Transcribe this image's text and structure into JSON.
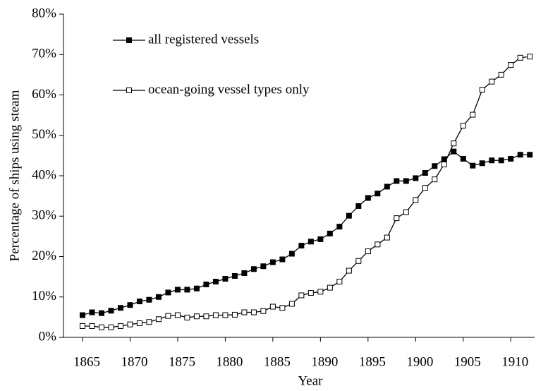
{
  "chart_data": {
    "type": "line",
    "xlabel": "Year",
    "ylabel": "Percentage of ships using steam",
    "x": [
      1865,
      1866,
      1867,
      1868,
      1869,
      1870,
      1871,
      1872,
      1873,
      1874,
      1875,
      1876,
      1877,
      1878,
      1879,
      1880,
      1881,
      1882,
      1883,
      1884,
      1885,
      1886,
      1887,
      1888,
      1889,
      1890,
      1891,
      1892,
      1893,
      1894,
      1895,
      1896,
      1897,
      1898,
      1899,
      1900,
      1901,
      1902,
      1903,
      1904,
      1905,
      1906,
      1907,
      1908,
      1909,
      1910,
      1911,
      1912
    ],
    "series": [
      {
        "name": "all registered vessels",
        "color": "#000000",
        "marker": "filled-square",
        "values": [
          5.5,
          6.2,
          6,
          6.6,
          7.3,
          8,
          8.9,
          9.3,
          10,
          11.1,
          11.8,
          11.8,
          12.1,
          13.1,
          13.8,
          14.5,
          15.2,
          15.9,
          16.9,
          17.6,
          18.6,
          19.3,
          20.7,
          22.7,
          23.7,
          24.3,
          25.7,
          27.4,
          30.1,
          32.5,
          34.5,
          35.6,
          37.3,
          38.7,
          38.7,
          39.4,
          40.7,
          42.4,
          44.1,
          46,
          44.2,
          42.5,
          43.1,
          43.8,
          43.8,
          44.2,
          45.2,
          45.2
        ]
      },
      {
        "name": "ocean-going vessel types only",
        "color": "#000000",
        "marker": "open-square",
        "values": [
          2.8,
          2.8,
          2.5,
          2.5,
          2.8,
          3.2,
          3.5,
          3.8,
          4.5,
          5.3,
          5.5,
          4.9,
          5.2,
          5.2,
          5.5,
          5.5,
          5.6,
          6.2,
          6.2,
          6.5,
          7.6,
          7.3,
          8.3,
          10.4,
          11,
          11.3,
          12.3,
          13.8,
          16.5,
          18.9,
          21.3,
          23,
          24.7,
          29.5,
          31,
          34,
          37,
          39.1,
          42.8,
          48,
          52.4,
          55.1,
          61.3,
          63.3,
          65,
          67.4,
          69.2,
          69.5
        ]
      }
    ],
    "xlim": [
      1863,
      1912.5
    ],
    "xticks": [
      1865,
      1870,
      1875,
      1880,
      1885,
      1890,
      1895,
      1900,
      1905,
      1910
    ],
    "ylim": [
      0,
      80
    ],
    "yticks": [
      {
        "value": 0,
        "label": "0%"
      },
      {
        "value": 10,
        "label": "10%"
      },
      {
        "value": 20,
        "label": "20%"
      },
      {
        "value": 30,
        "label": "30%"
      },
      {
        "value": 40,
        "label": "40%"
      },
      {
        "value": 50,
        "label": "50%"
      },
      {
        "value": 60,
        "label": "60%"
      },
      {
        "value": 70,
        "label": "70%"
      },
      {
        "value": 80,
        "label": "80%"
      }
    ],
    "grid": false,
    "legend": "upper left"
  }
}
